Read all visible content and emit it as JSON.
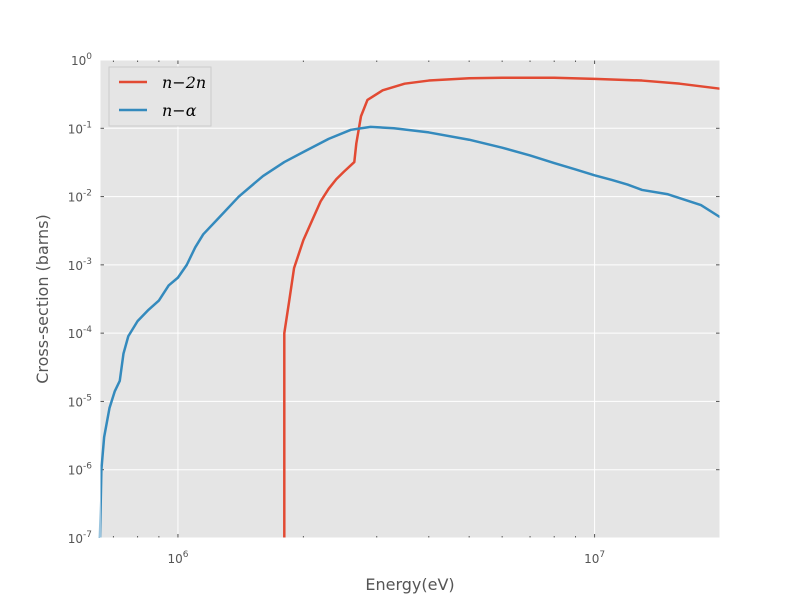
{
  "chart_data": {
    "type": "line",
    "xlabel": "Energy(eV)",
    "ylabel": "Cross-section (barns)",
    "x_scale": "log",
    "y_scale": "log",
    "xlim": [
      650000,
      20000000
    ],
    "ylim": [
      1e-07,
      1
    ],
    "grid": true,
    "legend_position": "top-left",
    "x_ticks": [
      {
        "value": 1000000,
        "base": "10",
        "exp": "6"
      },
      {
        "value": 10000000,
        "base": "10",
        "exp": "7"
      }
    ],
    "y_ticks": [
      {
        "value": 1e-07,
        "base": "10",
        "exp": "-7"
      },
      {
        "value": 1e-06,
        "base": "10",
        "exp": "-6"
      },
      {
        "value": 1e-05,
        "base": "10",
        "exp": "-5"
      },
      {
        "value": 0.0001,
        "base": "10",
        "exp": "-4"
      },
      {
        "value": 0.001,
        "base": "10",
        "exp": "-3"
      },
      {
        "value": 0.01,
        "base": "10",
        "exp": "-2"
      },
      {
        "value": 0.1,
        "base": "10",
        "exp": "-1"
      },
      {
        "value": 1,
        "base": "10",
        "exp": "0"
      }
    ],
    "series": [
      {
        "name": "n−2n",
        "color": "#E24A33",
        "points": [
          [
            1800000,
            1e-07
          ],
          [
            1800000,
            0.0001
          ],
          [
            1850000,
            0.0003
          ],
          [
            1900000,
            0.0009
          ],
          [
            2000000,
            0.0023
          ],
          [
            2100000,
            0.0045
          ],
          [
            2200000,
            0.0085
          ],
          [
            2300000,
            0.013
          ],
          [
            2400000,
            0.018
          ],
          [
            2500000,
            0.023
          ],
          [
            2650000,
            0.032
          ],
          [
            2680000,
            0.06
          ],
          [
            2750000,
            0.15
          ],
          [
            2850000,
            0.26
          ],
          [
            3100000,
            0.36
          ],
          [
            3500000,
            0.45
          ],
          [
            4000000,
            0.5
          ],
          [
            5000000,
            0.54
          ],
          [
            6000000,
            0.55
          ],
          [
            8000000,
            0.55
          ],
          [
            10000000,
            0.53
          ],
          [
            13000000,
            0.5
          ],
          [
            16000000,
            0.45
          ],
          [
            20000000,
            0.38
          ]
        ]
      },
      {
        "name": "n−α",
        "color": "#348ABD",
        "points": [
          [
            650000,
            1e-07
          ],
          [
            655000,
            1e-06
          ],
          [
            665000,
            3e-06
          ],
          [
            685000,
            8e-06
          ],
          [
            705000,
            1.4e-05
          ],
          [
            725000,
            2e-05
          ],
          [
            740000,
            5e-05
          ],
          [
            760000,
            9e-05
          ],
          [
            800000,
            0.00015
          ],
          [
            850000,
            0.00022
          ],
          [
            900000,
            0.0003
          ],
          [
            950000,
            0.0005
          ],
          [
            1000000,
            0.00065
          ],
          [
            1050000,
            0.001
          ],
          [
            1100000,
            0.0018
          ],
          [
            1150000,
            0.0028
          ],
          [
            1250000,
            0.0048
          ],
          [
            1400000,
            0.01
          ],
          [
            1600000,
            0.02
          ],
          [
            1800000,
            0.032
          ],
          [
            2000000,
            0.045
          ],
          [
            2300000,
            0.07
          ],
          [
            2600000,
            0.095
          ],
          [
            2900000,
            0.105
          ],
          [
            3300000,
            0.1
          ],
          [
            4000000,
            0.087
          ],
          [
            5000000,
            0.068
          ],
          [
            6000000,
            0.052
          ],
          [
            7000000,
            0.04
          ],
          [
            8000000,
            0.031
          ],
          [
            9000000,
            0.025
          ],
          [
            10000000,
            0.0205
          ],
          [
            11000000,
            0.0175
          ],
          [
            12000000,
            0.015
          ],
          [
            13000000,
            0.0125
          ],
          [
            15000000,
            0.0108
          ],
          [
            18000000,
            0.0075
          ],
          [
            20000000,
            0.005
          ]
        ]
      }
    ]
  }
}
